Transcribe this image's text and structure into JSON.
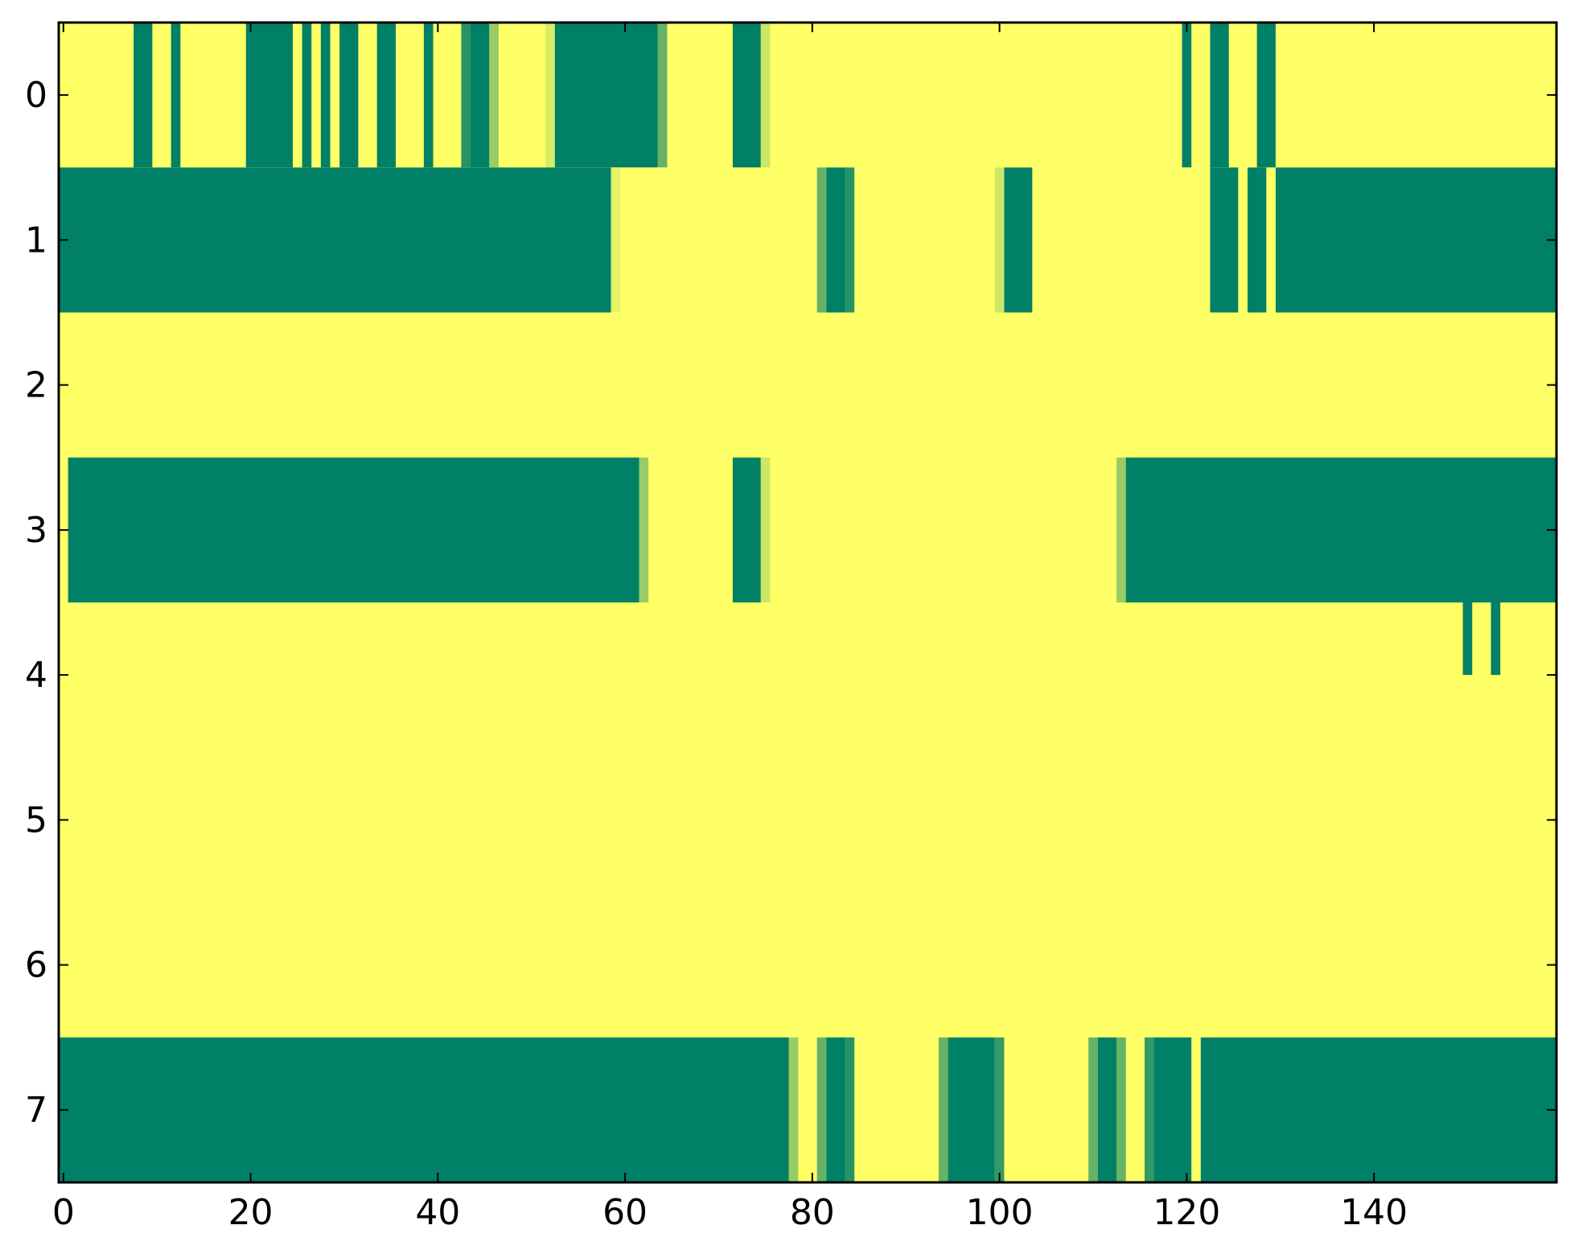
{
  "chart_data": {
    "type": "heatmap",
    "colormap": "summer",
    "colors": {
      "low": "#008066",
      "high": "#ffff66"
    },
    "xlim": [
      -0.5,
      159.5
    ],
    "ylim": [
      7.5,
      -0.5
    ],
    "xticks": [
      "0",
      "20",
      "40",
      "60",
      "80",
      "100",
      "120",
      "140"
    ],
    "yticks": [
      "0",
      "1",
      "2",
      "3",
      "4",
      "5",
      "6",
      "7"
    ],
    "n_columns": 160,
    "value_range": [
      0,
      1
    ],
    "rows": [
      {
        "row": 0,
        "low_runs": [
          [
            8,
            9
          ],
          [
            12,
            12
          ],
          [
            20,
            24
          ],
          [
            26,
            26
          ],
          [
            28,
            28
          ],
          [
            30,
            31
          ],
          [
            34,
            35
          ],
          [
            39,
            39
          ],
          [
            43,
            43,
            0.15
          ],
          [
            44,
            45
          ],
          [
            46,
            46,
            0.6
          ],
          [
            52,
            52,
            0.85
          ],
          [
            53,
            63
          ],
          [
            64,
            64,
            0.4
          ],
          [
            72,
            74
          ],
          [
            75,
            75,
            0.8
          ],
          [
            120,
            120
          ],
          [
            123,
            124
          ],
          [
            128,
            129
          ]
        ]
      },
      {
        "row": 1,
        "low_runs": [
          [
            0,
            58
          ],
          [
            59,
            59,
            0.9
          ],
          [
            81,
            81,
            0.4
          ],
          [
            82,
            83
          ],
          [
            84,
            84,
            0.15
          ],
          [
            100,
            100,
            0.8
          ],
          [
            101,
            103
          ],
          [
            123,
            125
          ],
          [
            127,
            128
          ],
          [
            130,
            159
          ]
        ]
      },
      {
        "row": 2,
        "low_runs": []
      },
      {
        "row": 3,
        "low_runs": [
          [
            1,
            61
          ],
          [
            62,
            62,
            0.6
          ],
          [
            72,
            74
          ],
          [
            75,
            75,
            0.8
          ],
          [
            113,
            113,
            0.6
          ],
          [
            114,
            159
          ]
        ]
      },
      {
        "row": 4,
        "low_runs": [
          [
            150,
            150
          ],
          [
            153,
            153
          ]
        ],
        "partial_height": 0.5
      },
      {
        "row": 5,
        "low_runs": []
      },
      {
        "row": 6,
        "low_runs": []
      },
      {
        "row": 7,
        "low_runs": [
          [
            0,
            77
          ],
          [
            78,
            78,
            0.6
          ],
          [
            81,
            81,
            0.4
          ],
          [
            82,
            83
          ],
          [
            84,
            84,
            0.15
          ],
          [
            94,
            94,
            0.4
          ],
          [
            95,
            99
          ],
          [
            100,
            100,
            0.2
          ],
          [
            110,
            110,
            0.4
          ],
          [
            111,
            112
          ],
          [
            113,
            113,
            0.4
          ],
          [
            116,
            116,
            0.2
          ],
          [
            117,
            120
          ],
          [
            122,
            159
          ]
        ]
      }
    ],
    "title": "",
    "xlabel": "",
    "ylabel": ""
  }
}
